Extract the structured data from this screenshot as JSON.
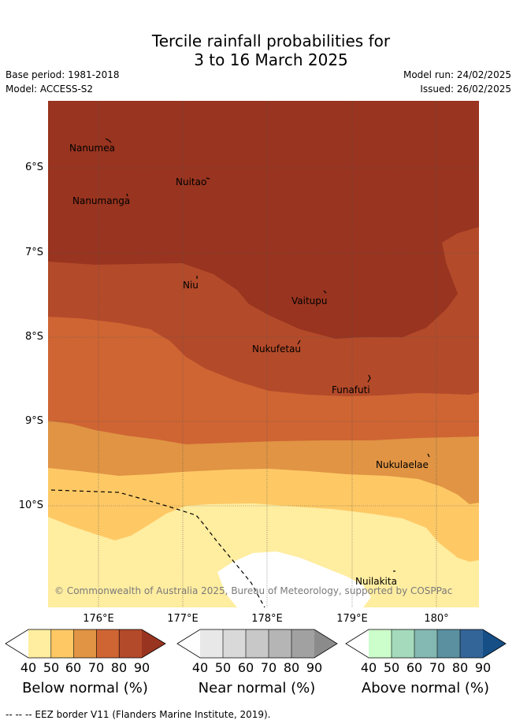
{
  "title": {
    "line1": "Tercile rainfall probabilities for",
    "line2": "3 to 16 March 2025"
  },
  "meta": {
    "base_period": "Base period: 1981-2018",
    "model": "Model: ACCESS-S2",
    "model_run": "Model run: 24/02/2025",
    "issued": "Issued: 26/02/2025"
  },
  "map": {
    "latitude_labels": [
      "6°S",
      "7°S",
      "8°S",
      "9°S",
      "10°S"
    ],
    "longitude_labels": [
      "176°E",
      "177°E",
      "178°E",
      "179°E",
      "180°"
    ],
    "places": [
      "Nanumea",
      "Nuitao",
      "Nanumanga",
      "Niu",
      "Vaitupu",
      "Nukufetau",
      "Funafuti",
      "Nukulaelae",
      "Nuilakita"
    ],
    "copyright": "© Commonwealth of Australia 2025, Bureau of Meteorology, supported by COSPPac"
  },
  "colorbars": [
    {
      "title": "Below normal (%)",
      "ticks": [
        "40",
        "50",
        "60",
        "70",
        "80",
        "90"
      ],
      "colors": [
        "#ffeda0",
        "#fec965",
        "#e09444",
        "#cf6533",
        "#b34a2a",
        "#98341f"
      ]
    },
    {
      "title": "Near normal (%)",
      "ticks": [
        "40",
        "50",
        "60",
        "70",
        "80",
        "90"
      ],
      "colors": [
        "#e8e8e8",
        "#d9d9d9",
        "#c8c8c8",
        "#b5b5b5",
        "#a1a1a1",
        "#8b8b8b"
      ]
    },
    {
      "title": "Above normal (%)",
      "ticks": [
        "40",
        "50",
        "60",
        "70",
        "80",
        "90"
      ],
      "colors": [
        "#ccfecb",
        "#a5dabc",
        "#84b8b2",
        "#5a90a0",
        "#336599",
        "#164e86"
      ]
    }
  ],
  "footer": "--  --  -- EEZ border V11 (Flanders Marine Institute, 2019)."
}
